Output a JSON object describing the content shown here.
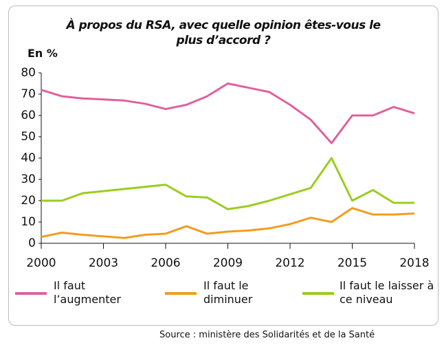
{
  "chart_data": {
    "type": "line",
    "title": "À propos du RSA,  avec quelle opinion êtes-vous le plus d’accord ?",
    "y_label": "En %",
    "source": "Source : ministère des Solidarités et de la Santé",
    "x": [
      2000,
      2001,
      2002,
      2004,
      2005,
      2006,
      2007,
      2008,
      2009,
      2010,
      2011,
      2012,
      2013,
      2014,
      2015,
      2016,
      2017,
      2018
    ],
    "series": [
      {
        "name": "Il faut l’augmenter",
        "color": "#e0609e",
        "values": [
          72,
          69,
          68,
          67,
          65.5,
          63,
          65,
          69,
          75,
          73,
          71,
          65,
          58,
          47,
          60,
          60,
          64,
          61
        ]
      },
      {
        "name": "Il faut le diminuer",
        "color": "#f39c1e",
        "values": [
          3,
          5,
          4,
          2.5,
          4,
          4.5,
          8,
          4.5,
          5.5,
          6,
          7,
          9,
          12,
          10,
          16.5,
          13.5,
          13.5,
          14
        ]
      },
      {
        "name": "Il faut le laisser à ce niveau",
        "color": "#9acd1e",
        "values": [
          20,
          20,
          23.5,
          25.5,
          26.5,
          27.5,
          22,
          21.5,
          16,
          17.5,
          20,
          23,
          26,
          40,
          20,
          25,
          19,
          19
        ]
      }
    ],
    "xlim": [
      2000,
      2018
    ],
    "xticks": [
      2000,
      2003,
      2006,
      2009,
      2012,
      2015,
      2018
    ],
    "ylim": [
      0,
      80
    ],
    "yticks": [
      0,
      10,
      20,
      30,
      40,
      50,
      60,
      70,
      80
    ],
    "grid": false
  }
}
